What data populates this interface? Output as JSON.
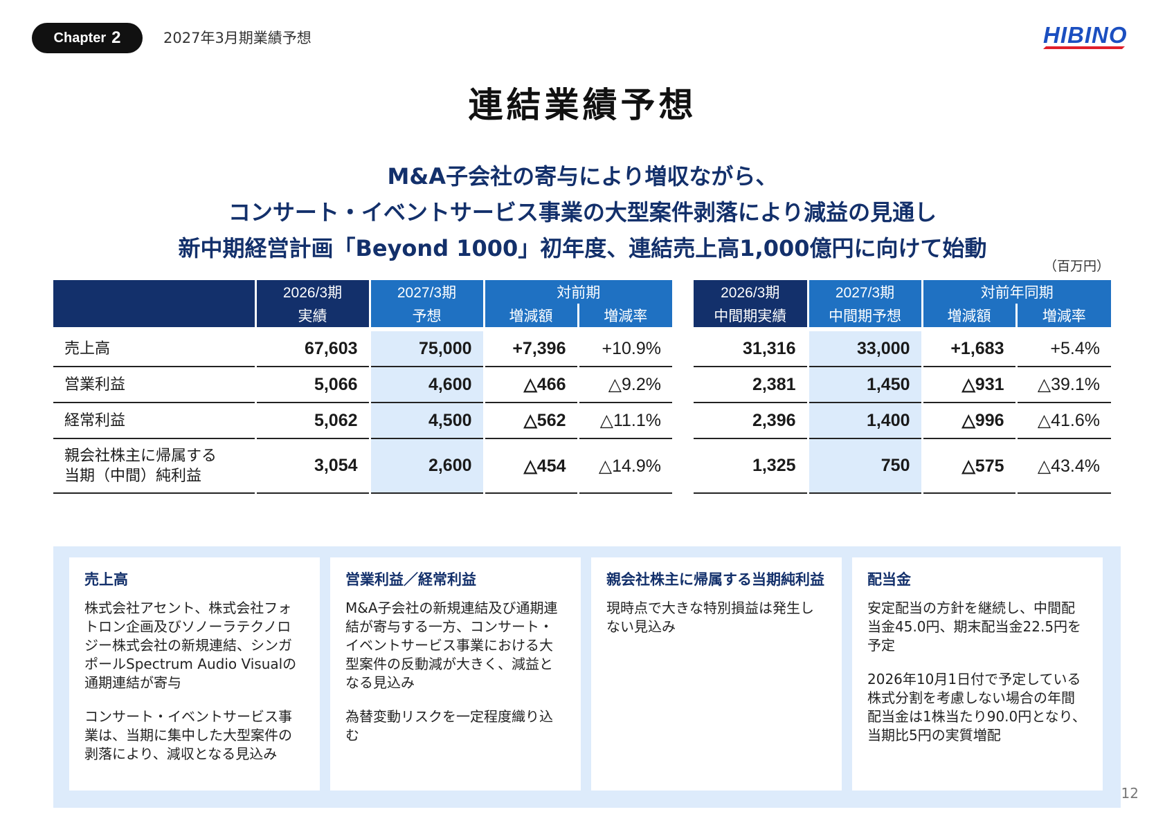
{
  "header": {
    "chapter_word": "Chapter",
    "chapter_number": "2",
    "section": "2027年3月期業績予想",
    "logo_text": "HIBINO"
  },
  "title": "連結業績予想",
  "headline": [
    "M&A子会社の寄与により増収ながら、",
    "コンサート・イベントサービス事業の大型案件剥落により減益の見通し",
    "新中期経営計画「Beyond 1000」初年度、連結売上高1,000億円に向けて始動"
  ],
  "unit": "（百万円）",
  "left_table": {
    "col_a_top": "2026/3期",
    "col_a_bottom": "実績",
    "col_b_top": "2027/3期",
    "col_b_bottom": "予想",
    "col_c_top": "対前期",
    "col_c_sub1": "増減額",
    "col_c_sub2": "増減率",
    "rows": [
      {
        "label": "売上高",
        "actual": "67,603",
        "forecast": "75,000",
        "delta": "+7,396",
        "rate": "+10.9%"
      },
      {
        "label": "営業利益",
        "actual": "5,066",
        "forecast": "4,600",
        "delta": "△466",
        "rate": "△9.2%"
      },
      {
        "label": "経常利益",
        "actual": "5,062",
        "forecast": "4,500",
        "delta": "△562",
        "rate": "△11.1%"
      },
      {
        "label_line1": "親会社株主に帰属する",
        "label_line2": "当期（中間）純利益",
        "actual": "3,054",
        "forecast": "2,600",
        "delta": "△454",
        "rate": "△14.9%"
      }
    ]
  },
  "right_table": {
    "col_a_top": "2026/3期",
    "col_a_bottom": "中間期実績",
    "col_b_top": "2027/3期",
    "col_b_bottom": "中間期予想",
    "col_c_top": "対前年同期",
    "col_c_sub1": "増減額",
    "col_c_sub2": "増減率",
    "rows": [
      {
        "actual": "31,316",
        "forecast": "33,000",
        "delta": "+1,683",
        "rate": "+5.4%"
      },
      {
        "actual": "2,381",
        "forecast": "1,450",
        "delta": "△931",
        "rate": "△39.1%"
      },
      {
        "actual": "2,396",
        "forecast": "1,400",
        "delta": "△996",
        "rate": "△41.6%"
      },
      {
        "actual": "1,325",
        "forecast": "750",
        "delta": "△575",
        "rate": "△43.4%"
      }
    ]
  },
  "notes": [
    {
      "title": "売上高",
      "paragraphs": [
        "株式会社アセント、株式会社フォトロン企画及びソノーラテクノロジー株式会社の新規連結、シンガポールSpectrum Audio Visualの通期連結が寄与",
        "コンサート・イベントサービス事業は、当期に集中した大型案件の剥落により、減収となる見込み"
      ]
    },
    {
      "title": "営業利益／経常利益",
      "paragraphs": [
        "M&A子会社の新規連結及び通期連結が寄与する一方、コンサート・イベントサービス事業における大型案件の反動減が大きく、減益となる見込み",
        "為替変動リスクを一定程度織り込む"
      ]
    },
    {
      "title": "親会社株主に帰属する当期純利益",
      "paragraphs": [
        "現時点で大きな特別損益は発生しない見込み"
      ]
    },
    {
      "title": "配当金",
      "paragraphs": [
        "安定配当の方針を継続し、中間配当金45.0円、期末配当金22.5円を予定",
        "2026年10月1日付で予定している株式分割を考慮しない場合の年間配当金は1株当たり90.0円となり、当期比5円の実質増配"
      ]
    }
  ],
  "page_number": "12",
  "colors": {
    "navy": "#13306b",
    "blue": "#1f71c2",
    "forecast_fill": "#dcebfb",
    "logo_blue": "#1b4fc0",
    "logo_red": "#e0202a"
  }
}
